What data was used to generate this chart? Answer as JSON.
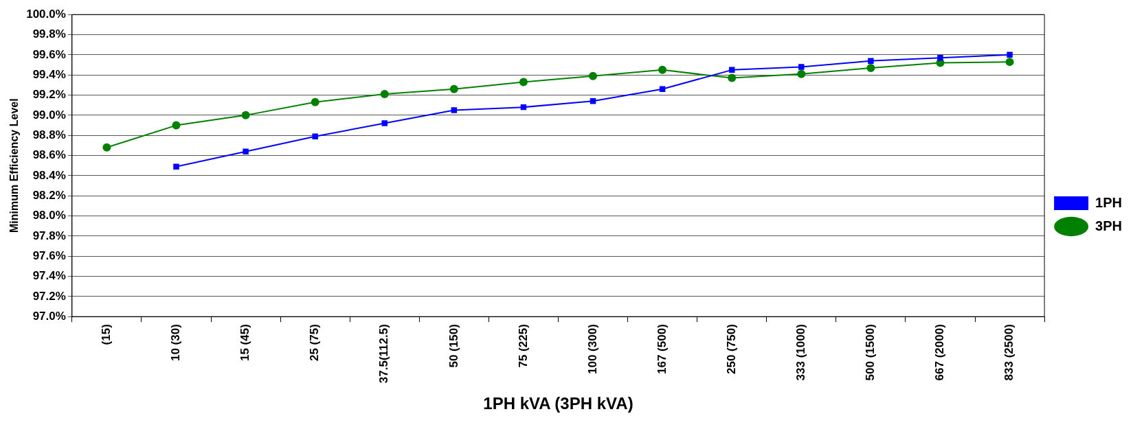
{
  "chart_data": {
    "type": "line",
    "xlabel": "1PH kVA (3PH kVA)",
    "ylabel": "Minimum Efficiency Level",
    "categories": [
      "(15)",
      "10 (30)",
      "15 (45)",
      "25 (75)",
      "37.5(112.5)",
      "50 (150)",
      "75 (225)",
      "100 (300)",
      "167 (500)",
      "250 (750)",
      "333 (1000)",
      "500 (1500)",
      "667 (2000)",
      "833 (2500)"
    ],
    "series": [
      {
        "name": "1PH",
        "color": "#0000ff",
        "marker": "square",
        "values": [
          null,
          98.49,
          98.64,
          98.79,
          98.92,
          99.05,
          99.08,
          99.14,
          99.26,
          99.45,
          99.48,
          99.54,
          99.57,
          99.6
        ]
      },
      {
        "name": "3PH",
        "color": "#008000",
        "marker": "circle",
        "values": [
          98.68,
          98.9,
          99.0,
          99.13,
          99.21,
          99.26,
          99.33,
          99.39,
          99.45,
          99.37,
          99.41,
          99.47,
          99.52,
          99.53
        ]
      }
    ],
    "ylim": [
      97.0,
      100.0
    ],
    "yticks": [
      {
        "value": 97.0,
        "label": "97.0%"
      },
      {
        "value": 97.2,
        "label": "97.2%"
      },
      {
        "value": 97.4,
        "label": "97.4%"
      },
      {
        "value": 97.6,
        "label": "97.6%"
      },
      {
        "value": 97.8,
        "label": "97.8%"
      },
      {
        "value": 98.0,
        "label": "98.0%"
      },
      {
        "value": 98.2,
        "label": "98.2%"
      },
      {
        "value": 98.4,
        "label": "98.4%"
      },
      {
        "value": 98.6,
        "label": "98.6%"
      },
      {
        "value": 98.8,
        "label": "98.8%"
      },
      {
        "value": 99.0,
        "label": "99.0%"
      },
      {
        "value": 99.2,
        "label": "99.2%"
      },
      {
        "value": 99.4,
        "label": "99.4%"
      },
      {
        "value": 99.6,
        "label": "99.6%"
      },
      {
        "value": 99.8,
        "label": "99.8%"
      },
      {
        "value": 100.0,
        "label": "100.0%"
      }
    ],
    "grid": "y",
    "legend": "right",
    "line_style": "solid"
  }
}
